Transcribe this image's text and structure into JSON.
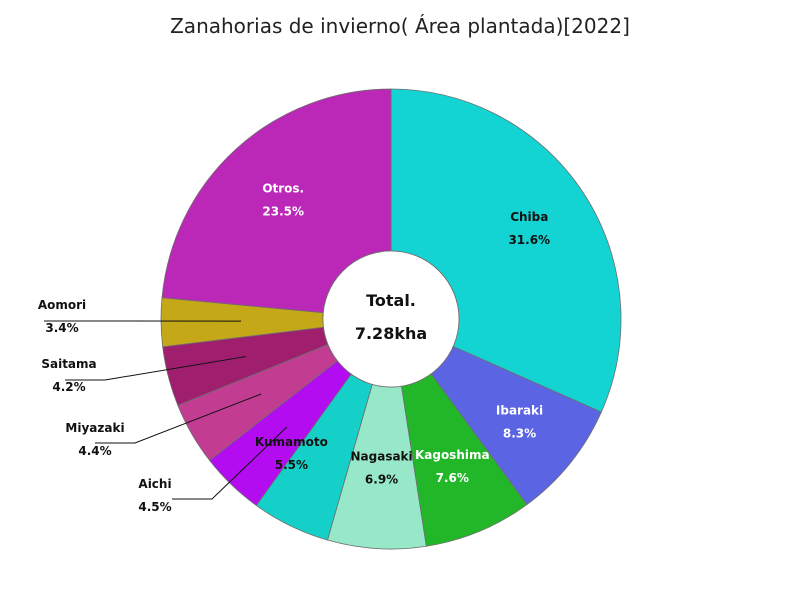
{
  "chart_data": {
    "type": "pie",
    "title": "Zanahorias de invierno( Área plantada)[2022]",
    "center_label": "Total.",
    "center_value": "7.28kha",
    "slices": [
      {
        "label": "Chiba",
        "value": 31.6,
        "display": "31.6%",
        "color": "#14d3d3",
        "text_color": "#111111"
      },
      {
        "label": "Ibaraki",
        "value": 8.3,
        "display": "8.3%",
        "color": "#5b65e3",
        "text_color": "#ffffff"
      },
      {
        "label": "Kagoshima",
        "value": 7.6,
        "display": "7.6%",
        "color": "#22b728",
        "text_color": "#ffffff"
      },
      {
        "label": "Nagasaki",
        "value": 6.9,
        "display": "6.9%",
        "color": "#96e8c8",
        "text_color": "#111111"
      },
      {
        "label": "Kumamoto",
        "value": 5.5,
        "display": "5.5%",
        "color": "#14d0c8",
        "text_color": "#111111"
      },
      {
        "label": "Aichi",
        "value": 4.5,
        "display": "4.5%",
        "color": "#b40cf0",
        "text_color": "#111111"
      },
      {
        "label": "Miyazaki",
        "value": 4.4,
        "display": "4.4%",
        "color": "#c23c92",
        "text_color": "#111111"
      },
      {
        "label": "Saitama",
        "value": 4.2,
        "display": "4.2%",
        "color": "#a01e6e",
        "text_color": "#111111"
      },
      {
        "label": "Aomori",
        "value": 3.4,
        "display": "3.4%",
        "color": "#c4a818",
        "text_color": "#111111"
      },
      {
        "label": "Otros.",
        "value": 23.5,
        "display": "23.5%",
        "color": "#bb28b8",
        "text_color": "#ffffff"
      }
    ]
  }
}
